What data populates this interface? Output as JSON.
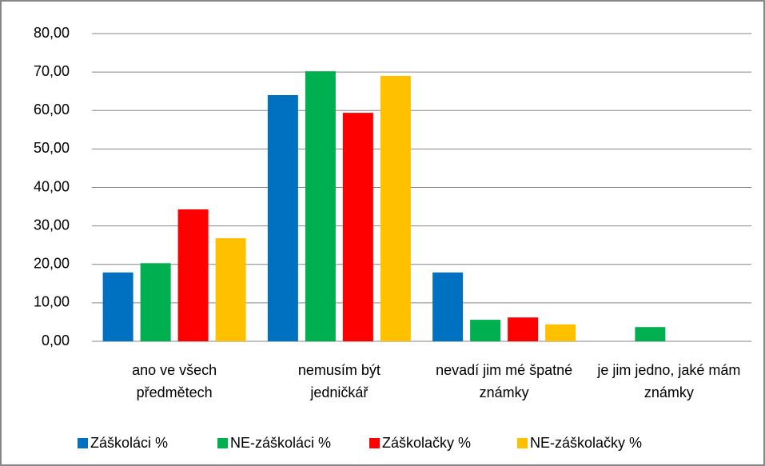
{
  "chart_data": {
    "type": "bar",
    "categories": [
      "ano ve všech předmětech",
      "nemusím být jedničkář",
      "nevadí jim mé špatné známky",
      "je jim jedno, jaké mám známky"
    ],
    "series": [
      {
        "name": "Záškoláci %",
        "color": "#0070c0",
        "values": [
          17.9,
          64.0,
          17.9,
          0
        ]
      },
      {
        "name": "NE-záškoláci %",
        "color": "#00b050",
        "values": [
          20.3,
          70.2,
          5.6,
          3.7
        ]
      },
      {
        "name": "Záškolačky %",
        "color": "#ff0000",
        "values": [
          34.3,
          59.4,
          6.2,
          0
        ]
      },
      {
        "name": "NE-záškolačky %",
        "color": "#ffc000",
        "values": [
          26.8,
          69.0,
          4.4,
          0
        ]
      }
    ],
    "ylim": [
      0,
      80
    ],
    "yticks": [
      {
        "value": 0,
        "label": "0,00"
      },
      {
        "value": 10,
        "label": "10,00"
      },
      {
        "value": 20,
        "label": "20,00"
      },
      {
        "value": 30,
        "label": "30,00"
      },
      {
        "value": 40,
        "label": "40,00"
      },
      {
        "value": 50,
        "label": "50,00"
      },
      {
        "value": 60,
        "label": "60,00"
      },
      {
        "value": 70,
        "label": "70,00"
      },
      {
        "value": 80,
        "label": "80,00"
      }
    ],
    "grid": true,
    "legend": "bottom"
  }
}
